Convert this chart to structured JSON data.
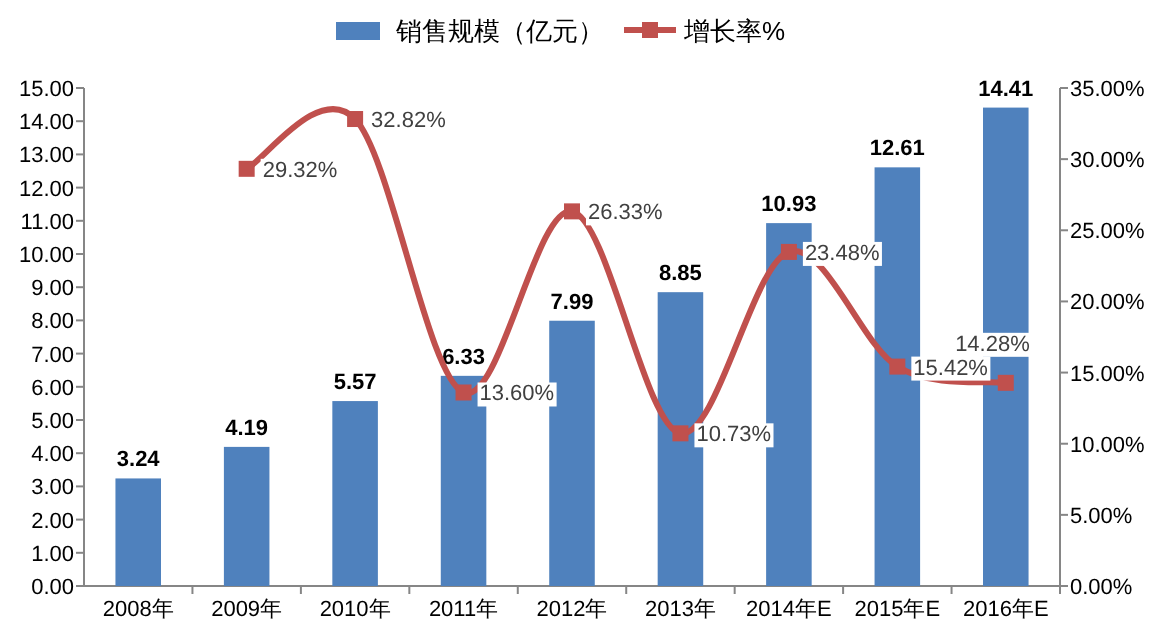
{
  "chart_data": {
    "type": "bar",
    "categories": [
      "2008年",
      "2009年",
      "2010年",
      "2011年",
      "2012年",
      "2013年",
      "2014年E",
      "2015年E",
      "2016年E"
    ],
    "series": [
      {
        "name": "销售规模（亿元）",
        "color": "#4f81bd",
        "values": [
          3.24,
          4.19,
          5.57,
          6.33,
          7.99,
          8.85,
          10.93,
          12.61,
          14.41
        ],
        "value_labels": [
          "3.24",
          "4.19",
          "5.57",
          "6.33",
          "7.99",
          "8.85",
          "10.93",
          "12.61",
          "14.41"
        ]
      },
      {
        "name": "增长率%",
        "type": "line",
        "axis": "y2",
        "color": "#c0504d",
        "marker": "square",
        "values": [
          null,
          29.32,
          32.82,
          13.6,
          26.33,
          10.73,
          23.48,
          15.42,
          14.28
        ],
        "value_labels": [
          null,
          "29.32%",
          "32.82%",
          "13.60%",
          "26.33%",
          "10.73%",
          "23.48%",
          "15.42%",
          "14.28%"
        ]
      }
    ],
    "ylim": [
      0,
      15
    ],
    "yticks": [
      {
        "value": 0,
        "label": "0.00"
      },
      {
        "value": 1,
        "label": "1.00"
      },
      {
        "value": 2,
        "label": "2.00"
      },
      {
        "value": 3,
        "label": "3.00"
      },
      {
        "value": 4,
        "label": "4.00"
      },
      {
        "value": 5,
        "label": "5.00"
      },
      {
        "value": 6,
        "label": "6.00"
      },
      {
        "value": 7,
        "label": "7.00"
      },
      {
        "value": 8,
        "label": "8.00"
      },
      {
        "value": 9,
        "label": "9.00"
      },
      {
        "value": 10,
        "label": "10.00"
      },
      {
        "value": 11,
        "label": "11.00"
      },
      {
        "value": 12,
        "label": "12.00"
      },
      {
        "value": 13,
        "label": "13.00"
      },
      {
        "value": 14,
        "label": "14.00"
      },
      {
        "value": 15,
        "label": "15.00"
      }
    ],
    "y2lim": [
      0,
      35
    ],
    "y2ticks": [
      {
        "value": 0,
        "label": "0.00%"
      },
      {
        "value": 5,
        "label": "5.00%"
      },
      {
        "value": 10,
        "label": "10.00%"
      },
      {
        "value": 15,
        "label": "15.00%"
      },
      {
        "value": 20,
        "label": "20.00%"
      },
      {
        "value": 25,
        "label": "25.00%"
      },
      {
        "value": 30,
        "label": "30.00%"
      },
      {
        "value": 35,
        "label": "35.00%"
      }
    ],
    "legend": "top",
    "grid": false
  }
}
